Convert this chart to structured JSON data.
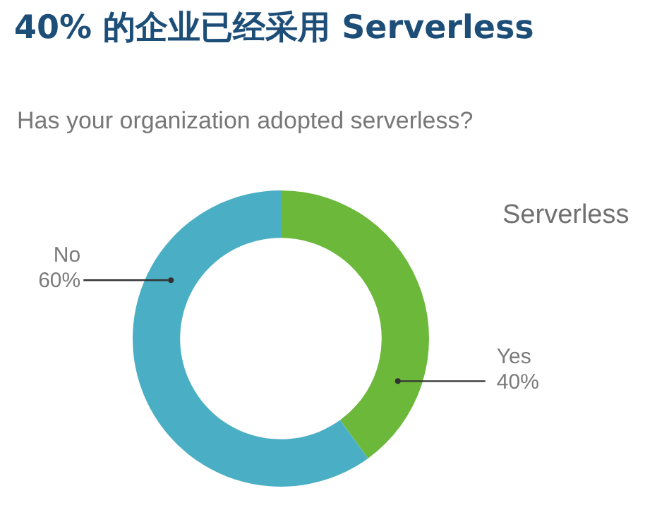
{
  "chart_data": {
    "type": "donut",
    "title": "40% 的企业已经采用 Serverless",
    "subtitle": "Has your organization adopted serverless?",
    "annotations": [
      "Serverless"
    ],
    "categories": [
      "Yes",
      "No"
    ],
    "values": [
      40,
      60
    ],
    "value_labels": [
      "40%",
      "60%"
    ],
    "colors": [
      "#6cb83a",
      "#4aafc4"
    ]
  }
}
